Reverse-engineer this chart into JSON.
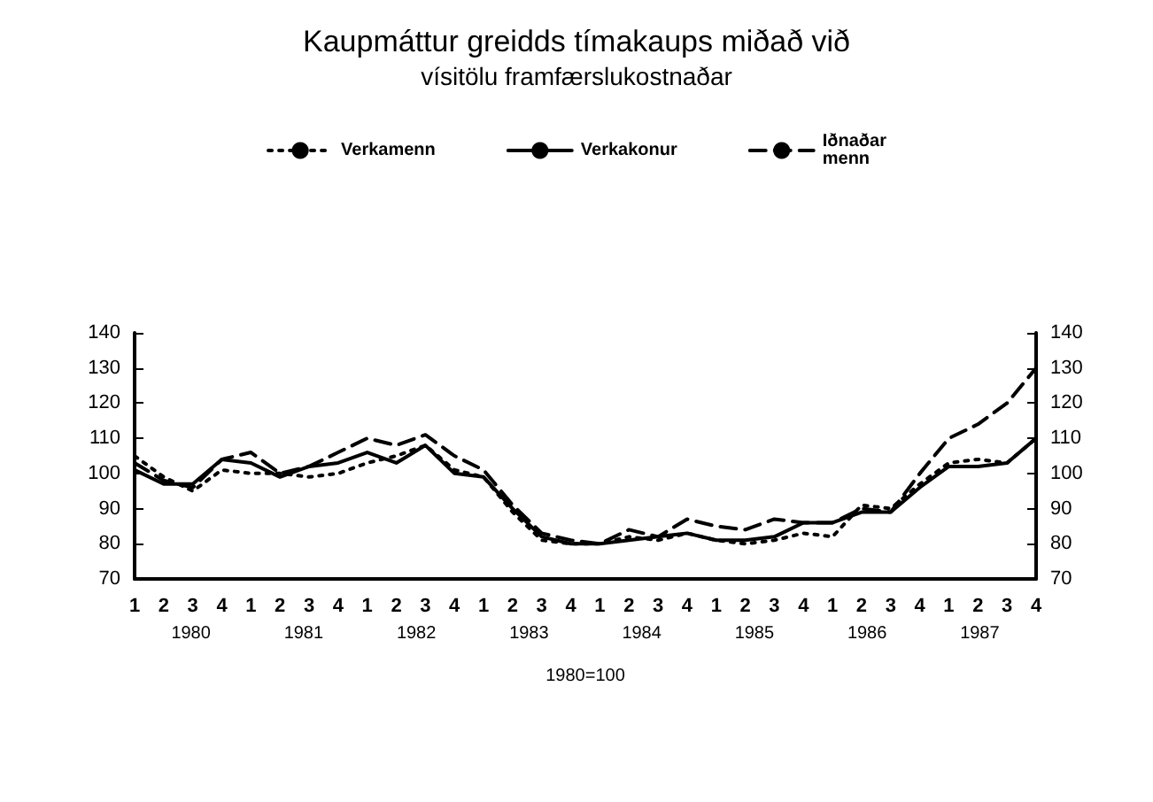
{
  "chart_data": {
    "type": "line",
    "title": "Kaupmáttur greidds tímakaups miðað við",
    "subtitle": "vísitölu framfærslukostnaðar",
    "xlabel": "1980=100",
    "categories": [
      "1",
      "2",
      "3",
      "4",
      "1",
      "2",
      "3",
      "4",
      "1",
      "2",
      "3",
      "4",
      "1",
      "2",
      "3",
      "4",
      "1",
      "2",
      "3",
      "4",
      "1",
      "2",
      "3",
      "4",
      "1",
      "2",
      "3",
      "4",
      "1",
      "2",
      "3",
      "4"
    ],
    "annotations": [
      "1980",
      "1981",
      "1982",
      "1983",
      "1984",
      "1985",
      "1986",
      "1987"
    ],
    "series": [
      {
        "name": "Verkamenn",
        "color": "#000000",
        "line_style": "dotted",
        "values": [
          105,
          99,
          95,
          101,
          100,
          100,
          99,
          100,
          103,
          105,
          108,
          101,
          99,
          89,
          81,
          80,
          80,
          82,
          81,
          83,
          81,
          80,
          81,
          83,
          82,
          91,
          90,
          97,
          103,
          104,
          103,
          110
        ]
      },
      {
        "name": "Verkakonur",
        "color": "#000000",
        "line_style": "solid",
        "values": [
          101,
          97,
          97,
          104,
          103,
          99,
          102,
          103,
          106,
          103,
          108,
          100,
          99,
          90,
          82,
          80,
          80,
          81,
          82,
          83,
          81,
          81,
          82,
          86,
          86,
          89,
          89,
          96,
          102,
          102,
          103,
          110
        ]
      },
      {
        "name": "Iðnaðar\nmenn",
        "color": "#000000",
        "line_style": "dashed",
        "values": [
          103,
          98,
          96,
          104,
          106,
          100,
          102,
          106,
          110,
          108,
          111,
          105,
          101,
          91,
          83,
          81,
          80,
          84,
          82,
          87,
          85,
          84,
          87,
          86,
          86,
          90,
          89,
          100,
          110,
          114,
          120,
          130
        ]
      }
    ],
    "ylim": [
      70,
      140
    ],
    "yticks": [
      70,
      80,
      90,
      100,
      110,
      120,
      130,
      140
    ],
    "y2lim": [
      70,
      140
    ],
    "y2ticks": [
      70,
      80,
      90,
      100,
      110,
      120,
      130,
      140
    ],
    "grid": false,
    "legend": "top",
    "marker": "none"
  }
}
